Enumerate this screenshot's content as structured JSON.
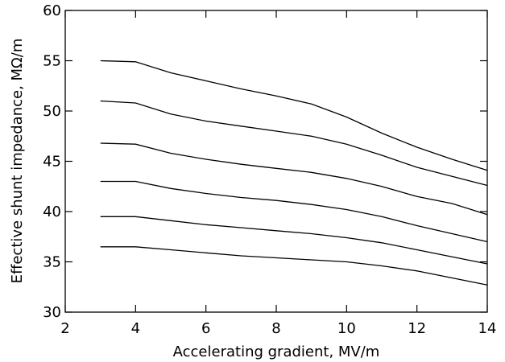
{
  "chart_data": {
    "type": "line",
    "title": "",
    "xlabel": "Accelerating gradient, MV/m",
    "ylabel": "Effective shunt impedance, MΩ/m",
    "xlim": [
      2,
      14
    ],
    "ylim": [
      30,
      60
    ],
    "xticks": [
      2,
      4,
      6,
      8,
      10,
      12,
      14
    ],
    "yticks": [
      30,
      35,
      40,
      45,
      50,
      55,
      60
    ],
    "grid": false,
    "legend": "none",
    "line_color": "#000000",
    "x": [
      3,
      4,
      5,
      6,
      7,
      8,
      9,
      10,
      11,
      12,
      13,
      14
    ],
    "series": [
      {
        "values": [
          55.0,
          54.9,
          53.8,
          53.0,
          52.2,
          51.5,
          50.7,
          49.4,
          47.8,
          46.4,
          45.2,
          44.1
        ]
      },
      {
        "values": [
          51.0,
          50.8,
          49.7,
          49.0,
          48.5,
          48.0,
          47.5,
          46.7,
          45.6,
          44.4,
          43.5,
          42.6
        ]
      },
      {
        "values": [
          46.8,
          46.7,
          45.8,
          45.2,
          44.7,
          44.3,
          43.9,
          43.3,
          42.5,
          41.5,
          40.8,
          39.7
        ]
      },
      {
        "values": [
          43.0,
          43.0,
          42.3,
          41.8,
          41.4,
          41.1,
          40.7,
          40.2,
          39.5,
          38.6,
          37.8,
          37.0
        ]
      },
      {
        "values": [
          39.5,
          39.5,
          39.1,
          38.7,
          38.4,
          38.1,
          37.8,
          37.4,
          36.9,
          36.2,
          35.5,
          34.8
        ]
      },
      {
        "values": [
          36.5,
          36.5,
          36.2,
          35.9,
          35.6,
          35.4,
          35.2,
          35.0,
          34.6,
          34.1,
          33.4,
          32.7
        ]
      }
    ]
  }
}
